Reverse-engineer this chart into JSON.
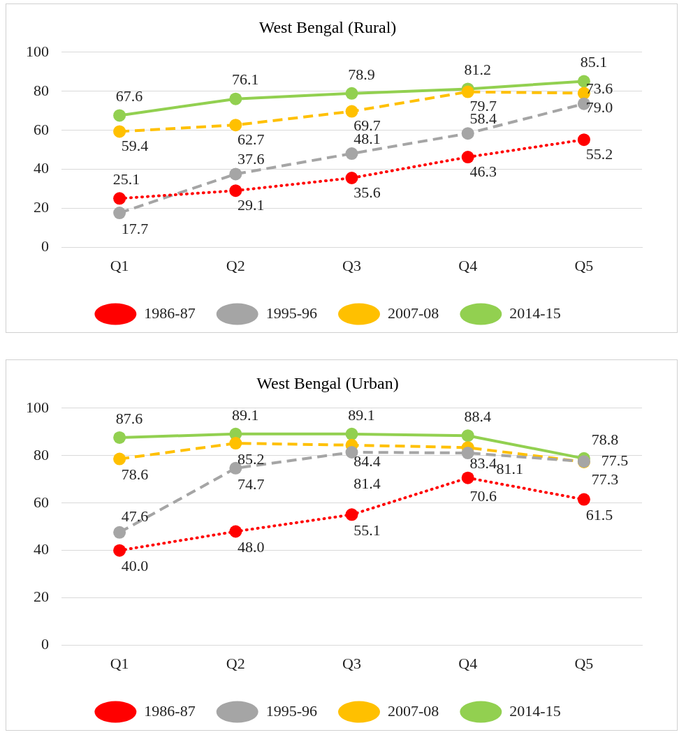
{
  "chart_data": [
    {
      "type": "line",
      "title": "West Bengal (Rural)",
      "categories": [
        "Q1",
        "Q2",
        "Q3",
        "Q4",
        "Q5"
      ],
      "ylim": [
        0,
        100
      ],
      "yticks": [
        0,
        20,
        40,
        60,
        80,
        100
      ],
      "grid": "y",
      "legend": "bottom",
      "marker": "circle",
      "series": [
        {
          "name": "1986-87",
          "color": "#ff0000",
          "line_style": "dotted",
          "values": [
            25.1,
            29.1,
            35.6,
            46.3,
            55.2
          ],
          "value_labels": [
            "25.1",
            "29.1",
            "35.6",
            "46.3",
            "55.2"
          ]
        },
        {
          "name": "1995-96",
          "color": "#a5a5a5",
          "line_style": "dashed",
          "values": [
            17.7,
            37.6,
            48.1,
            58.4,
            73.6
          ],
          "value_labels": [
            "17.7",
            "37.6",
            "48.1",
            "58.4",
            "73.6"
          ]
        },
        {
          "name": "2007-08",
          "color": "#ffc000",
          "line_style": "dashed",
          "values": [
            59.4,
            62.7,
            69.7,
            79.7,
            79.0
          ],
          "value_labels": [
            "59.4",
            "62.7",
            "69.7",
            "79.7",
            "79.0"
          ]
        },
        {
          "name": "2014-15",
          "color": "#92d050",
          "line_style": "solid",
          "values": [
            67.6,
            76.1,
            78.9,
            81.2,
            85.1
          ],
          "value_labels": [
            "67.6",
            "76.1",
            "78.9",
            "81.2",
            "85.1"
          ]
        }
      ]
    },
    {
      "type": "line",
      "title": "West Bengal (Urban)",
      "categories": [
        "Q1",
        "Q2",
        "Q3",
        "Q4",
        "Q5"
      ],
      "ylim": [
        0,
        100
      ],
      "yticks": [
        0,
        20,
        40,
        60,
        80,
        100
      ],
      "grid": "y",
      "legend": "bottom",
      "marker": "circle",
      "series": [
        {
          "name": "1986-87",
          "color": "#ff0000",
          "line_style": "dotted",
          "values": [
            40.0,
            48.0,
            55.1,
            70.6,
            61.5
          ],
          "value_labels": [
            "40.0",
            "48.0",
            "55.1",
            "70.6",
            "61.5"
          ]
        },
        {
          "name": "1995-96",
          "color": "#a5a5a5",
          "line_style": "dashed",
          "values": [
            47.6,
            74.7,
            81.4,
            81.1,
            77.5
          ],
          "value_labels": [
            "47.6",
            "74.7",
            "81.4",
            "81.1",
            "77.5"
          ]
        },
        {
          "name": "2007-08",
          "color": "#ffc000",
          "line_style": "dashed",
          "values": [
            78.6,
            85.2,
            84.4,
            83.4,
            77.3
          ],
          "value_labels": [
            "78.6",
            "85.2",
            "84.4",
            "83.4",
            "77.3"
          ]
        },
        {
          "name": "2014-15",
          "color": "#92d050",
          "line_style": "solid",
          "values": [
            87.6,
            89.1,
            89.1,
            88.4,
            78.8
          ],
          "value_labels": [
            "87.6",
            "89.1",
            "89.1",
            "88.4",
            "78.8"
          ]
        }
      ]
    }
  ]
}
